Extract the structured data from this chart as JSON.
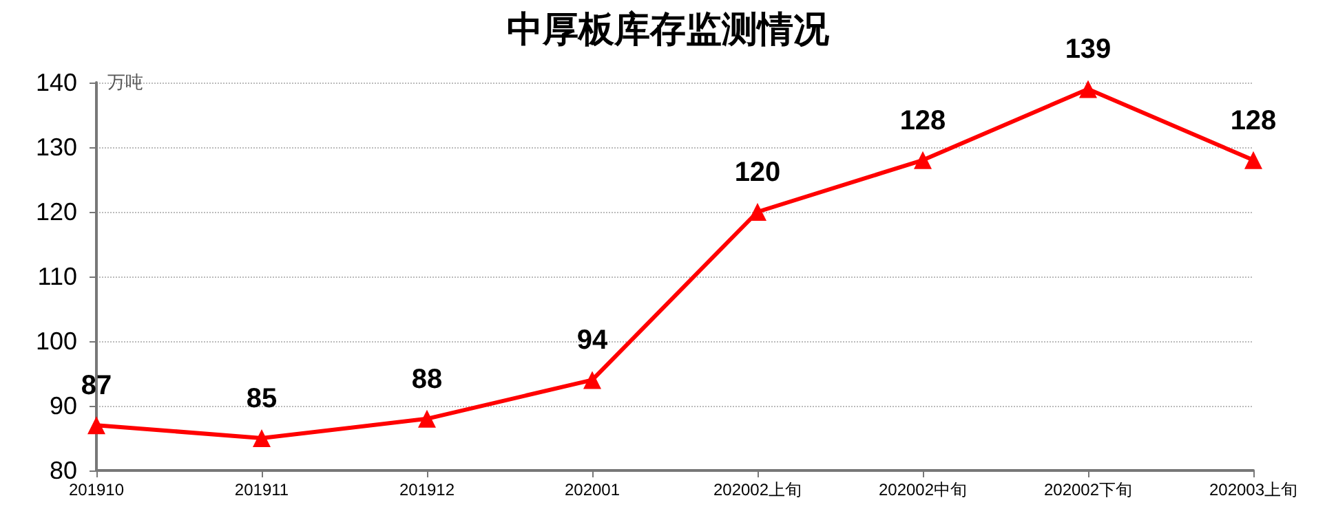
{
  "chart_data": {
    "type": "line",
    "title": "中厚板库存监测情况",
    "ylabel": "万吨",
    "categories": [
      "201910",
      "201911",
      "201912",
      "202001",
      "202002上旬",
      "202002中旬",
      "202002下旬",
      "202003上旬"
    ],
    "series": [
      {
        "color": "#ff0000",
        "values": [
          87,
          85,
          88,
          94,
          120,
          128,
          139,
          128
        ]
      }
    ],
    "ylim": [
      80,
      140
    ],
    "yticks": [
      80,
      90,
      100,
      110,
      120,
      130,
      140
    ],
    "grid": "y",
    "marker": "triangle",
    "line_style": "solid",
    "data_labels": true
  }
}
